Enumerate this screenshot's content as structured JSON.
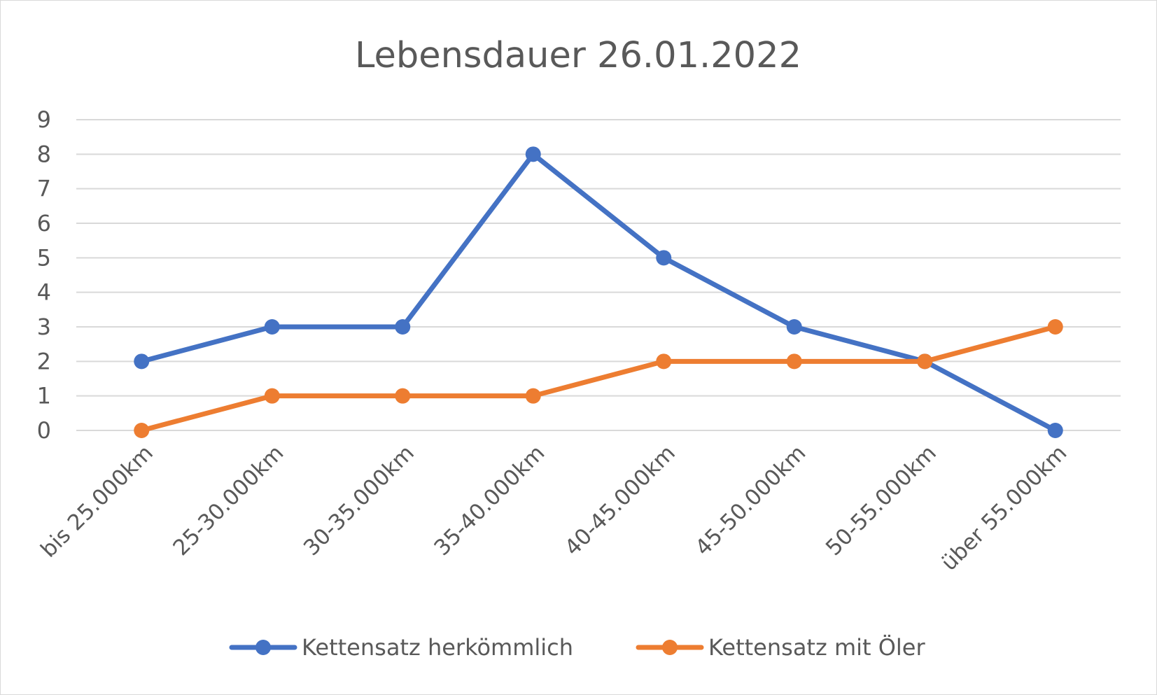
{
  "chart_data": {
    "type": "line",
    "title": "Lebensdauer 26.01.2022",
    "xlabel": "",
    "ylabel": "",
    "ylim": [
      0,
      9
    ],
    "yticks": [
      "0",
      "1",
      "2",
      "3",
      "4",
      "5",
      "6",
      "7",
      "8",
      "9"
    ],
    "grid": true,
    "legend_position": "bottom",
    "categories": [
      "bis 25.000km",
      "25-30.000km",
      "30-35.000km",
      "35-40.000km",
      "40-45.000km",
      "45-50.000km",
      "50-55.000km",
      "über 55.000km"
    ],
    "series": [
      {
        "name": "Kettensatz herkömmlich",
        "color": "#4472c4",
        "values": [
          2,
          3,
          3,
          8,
          5,
          3,
          2,
          0
        ]
      },
      {
        "name": "Kettensatz mit Öler",
        "color": "#ed7d31",
        "values": [
          0,
          1,
          1,
          1,
          2,
          2,
          2,
          3
        ]
      }
    ]
  }
}
